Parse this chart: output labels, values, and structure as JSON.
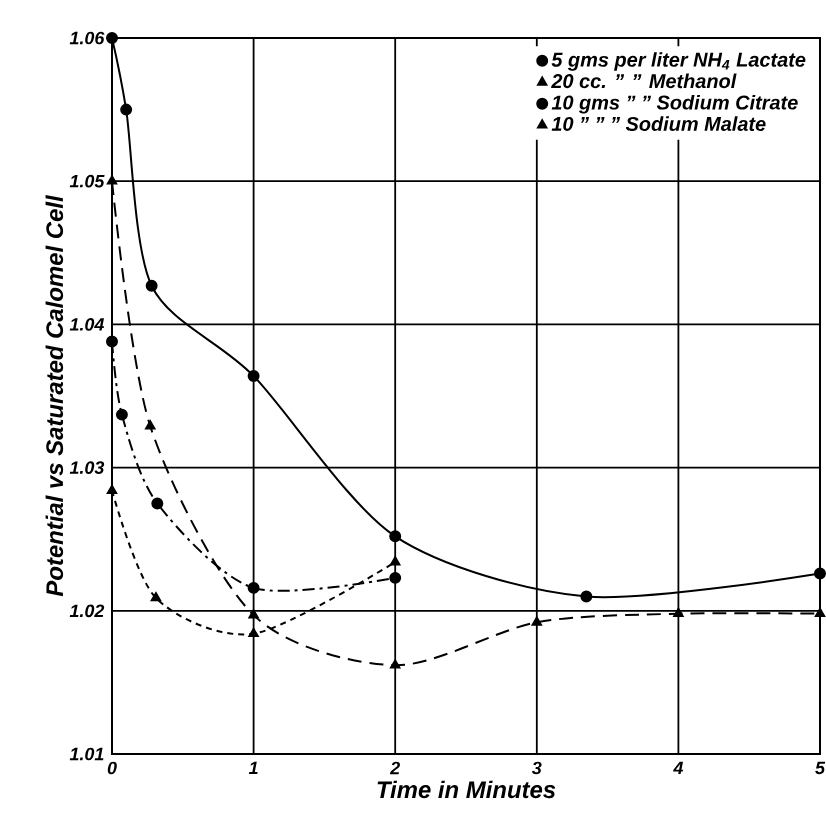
{
  "chart_data": {
    "type": "line",
    "xlabel": "Time in Minutes",
    "ylabel": "Potential vs Saturated Calomel Cell",
    "xlim": [
      0,
      5
    ],
    "ylim": [
      1.01,
      1.06
    ],
    "xticks": [
      0,
      1,
      2,
      3,
      4,
      5
    ],
    "yticks": [
      1.01,
      1.02,
      1.03,
      1.04,
      1.05,
      1.06
    ],
    "grid": true,
    "legend": "top right",
    "series": [
      {
        "name": "5 gms per liter NH$_{4}$ Lactate",
        "color": "#000000",
        "marker": "circle",
        "line_style": "solid",
        "x": [
          0,
          0.1,
          0.28,
          1,
          2,
          3.35,
          5
        ],
        "values": [
          1.06,
          1.055,
          1.0427,
          1.0364,
          1.0252,
          1.021,
          1.0226
        ]
      },
      {
        "name": "20 cc. ”  ” Methanol",
        "color": "#000000",
        "marker": "triangle",
        "line_style": "dashed",
        "x": [
          0,
          0.27,
          1,
          2,
          3,
          4,
          5
        ],
        "values": [
          1.05,
          1.0329,
          1.0197,
          1.0162,
          1.0192,
          1.0198,
          1.0198
        ]
      },
      {
        "name": "10 gms ”  ” Sodium Citrate",
        "color": "#000000",
        "marker": "circle",
        "line_style": "dashdotted",
        "x": [
          0,
          0.07,
          0.32,
          1,
          2
        ],
        "values": [
          1.0388,
          1.0337,
          1.0275,
          1.0216,
          1.0223
        ]
      },
      {
        "name": "10 ”  ”  ” Sodium Malate",
        "color": "#000000",
        "marker": "triangle",
        "line_style": "densely dashed",
        "x": [
          0,
          0.31,
          1,
          2
        ],
        "values": [
          1.0284,
          1.0209,
          1.0184,
          1.0234
        ]
      }
    ]
  }
}
